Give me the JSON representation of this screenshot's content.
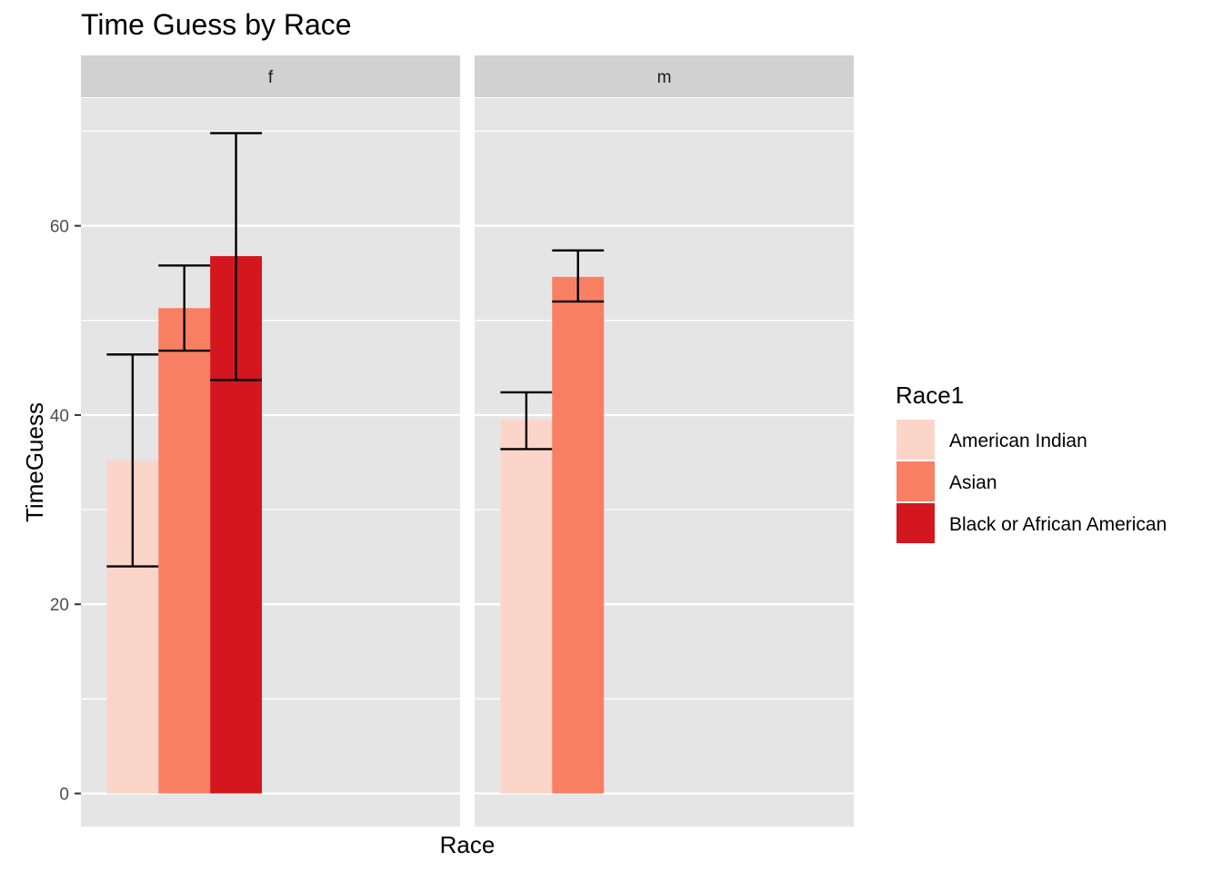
{
  "chart_data": {
    "type": "bar",
    "title": "Time Guess by Race",
    "xlabel": "Race",
    "ylabel": "TimeGuess",
    "ylim": [
      -3.5,
      73.5
    ],
    "yticks": [
      0,
      20,
      40,
      60
    ],
    "yticks_labels": [
      "0",
      "20",
      "40",
      "60"
    ],
    "grid": true,
    "legend": {
      "title": "Race1",
      "position": "right",
      "entries": [
        "American Indian",
        "Asian",
        "Black or African American"
      ]
    },
    "categories": [
      "American Indian",
      "Asian",
      "Black or African American"
    ],
    "facets": [
      {
        "label": "f",
        "values": [
          35.2,
          51.3,
          56.8
        ],
        "error_low": [
          24.0,
          46.8,
          43.7
        ],
        "error_high": [
          46.4,
          55.8,
          69.8
        ]
      },
      {
        "label": "m",
        "values": [
          39.5,
          54.6,
          null
        ],
        "error_low": [
          36.4,
          52.0,
          null
        ],
        "error_high": [
          42.4,
          57.4,
          null
        ]
      }
    ],
    "colors": {
      "American Indian": "#fcd5c9",
      "Asian": "#f97f62",
      "Black or African American": "#d4161e"
    },
    "panel_background": "#e5e5e5",
    "strip_background": "#d1d1d1",
    "gridline_color": "#ffffff",
    "errorbar_color": "#000000"
  }
}
